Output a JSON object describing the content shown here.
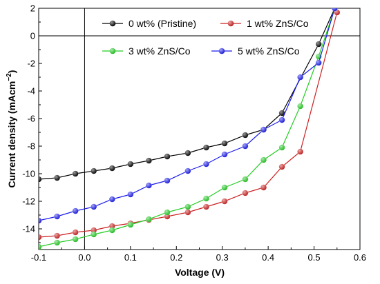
{
  "chart_data": {
    "type": "line",
    "title": "",
    "xlabel": "Voltage (V)",
    "ylabel_main": "Current density (mAcm",
    "ylabel_sup": "−2",
    "ylabel_close": ")",
    "xlim": [
      -0.1,
      0.6
    ],
    "ylim": [
      -15.5,
      2
    ],
    "x_ticks": [
      -0.1,
      0.0,
      0.1,
      0.2,
      0.3,
      0.4,
      0.5,
      0.6
    ],
    "x_tick_labels": [
      "-0.1",
      "0.0",
      "0.1",
      "0.2",
      "0.3",
      "0.4",
      "0.5",
      "0.6"
    ],
    "y_ticks": [
      2,
      0,
      -2,
      -4,
      -6,
      -8,
      -10,
      -12,
      -14
    ],
    "y_tick_labels": [
      "2",
      "0",
      "-2",
      "-4",
      "-6",
      "-8",
      "-10",
      "-12",
      "-14"
    ],
    "grid": false,
    "legend_position": "top",
    "series": [
      {
        "name": "0 wt% (Pristine)",
        "color": "#000000",
        "x": [
          -0.1,
          -0.06,
          -0.02,
          0.02,
          0.06,
          0.1,
          0.14,
          0.18,
          0.225,
          0.265,
          0.305,
          0.35,
          0.39,
          0.43,
          0.51,
          0.545
        ],
        "y": [
          -10.4,
          -10.3,
          -10.0,
          -9.8,
          -9.6,
          -9.3,
          -9.05,
          -8.75,
          -8.5,
          -8.1,
          -7.8,
          -7.2,
          -6.8,
          -5.6,
          -0.6,
          2.0
        ]
      },
      {
        "name": "1 wt% ZnS/Co",
        "color": "#cc1f1f",
        "x": [
          -0.1,
          -0.06,
          -0.02,
          0.02,
          0.06,
          0.1,
          0.14,
          0.18,
          0.225,
          0.265,
          0.305,
          0.35,
          0.39,
          0.43,
          0.47,
          0.55
        ],
        "y": [
          -14.6,
          -14.5,
          -14.25,
          -14.1,
          -13.8,
          -13.6,
          -13.35,
          -13.1,
          -12.8,
          -12.4,
          -12.0,
          -11.4,
          -11.0,
          -9.5,
          -8.4,
          1.7
        ]
      },
      {
        "name": "3 wt% ZnS/Co",
        "color": "#22cc22",
        "x": [
          -0.1,
          -0.06,
          -0.02,
          0.02,
          0.06,
          0.1,
          0.14,
          0.18,
          0.225,
          0.265,
          0.305,
          0.35,
          0.39,
          0.43,
          0.47,
          0.51,
          0.545
        ],
        "y": [
          -15.3,
          -15.0,
          -14.75,
          -14.4,
          -14.1,
          -13.7,
          -13.3,
          -12.8,
          -12.4,
          -11.8,
          -11.0,
          -10.4,
          -9.0,
          -8.1,
          -5.1,
          -1.5,
          2.0
        ]
      },
      {
        "name": "5 wt% ZnS/Co",
        "color": "#1a1aee",
        "x": [
          -0.1,
          -0.06,
          -0.02,
          0.02,
          0.06,
          0.1,
          0.14,
          0.18,
          0.225,
          0.265,
          0.305,
          0.35,
          0.39,
          0.43,
          0.47,
          0.51,
          0.545
        ],
        "y": [
          -13.4,
          -13.1,
          -12.7,
          -12.4,
          -11.85,
          -11.5,
          -10.85,
          -10.5,
          -9.8,
          -9.3,
          -8.6,
          -8.0,
          -6.8,
          -6.1,
          -3.0,
          -1.95,
          2.0
        ]
      }
    ]
  }
}
